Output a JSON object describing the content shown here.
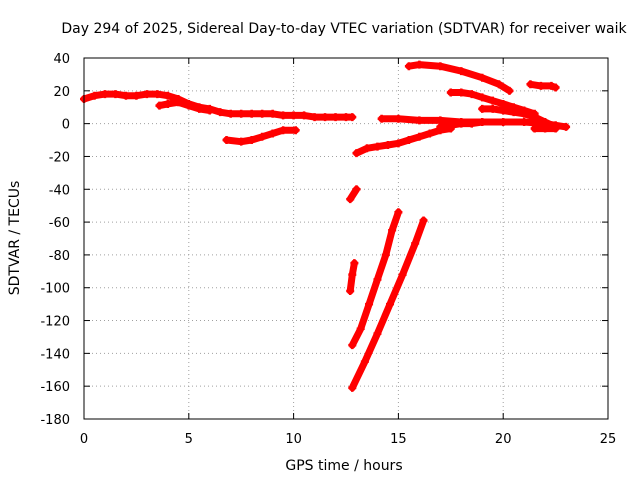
{
  "chart_data": {
    "type": "scatter",
    "title": "Day 294 of 2025, Sidereal Day-to-day VTEC variation (SDTVAR) for receiver waik",
    "xlabel": "GPS time / hours",
    "ylabel": "SDTVAR / TECUs",
    "xlim": [
      0,
      25
    ],
    "ylim": [
      -180,
      40
    ],
    "xticks": [
      0,
      5,
      10,
      15,
      20,
      25
    ],
    "yticks": [
      -180,
      -160,
      -140,
      -120,
      -100,
      -80,
      -60,
      -40,
      -20,
      0,
      20,
      40
    ],
    "grid": true,
    "legend": "none",
    "marker_color": "#ff0000",
    "series": [
      {
        "values": [
          [
            0.0,
            15
          ],
          [
            0.5,
            17
          ],
          [
            1.0,
            18
          ],
          [
            1.5,
            18
          ],
          [
            2.0,
            17
          ],
          [
            2.5,
            17
          ],
          [
            3.0,
            18
          ],
          [
            3.5,
            18
          ],
          [
            4.0,
            17
          ],
          [
            4.5,
            15
          ],
          [
            5.0,
            12
          ],
          [
            5.5,
            10
          ],
          [
            6.0,
            9
          ],
          [
            6.5,
            7
          ],
          [
            7.0,
            6
          ],
          [
            7.5,
            6
          ],
          [
            8.0,
            6
          ],
          [
            8.5,
            6
          ],
          [
            9.0,
            6
          ],
          [
            9.5,
            5
          ],
          [
            10.0,
            5
          ],
          [
            10.5,
            5
          ],
          [
            11.0,
            4
          ],
          [
            11.5,
            4
          ],
          [
            12.0,
            4
          ],
          [
            12.5,
            4
          ],
          [
            12.8,
            4
          ]
        ]
      },
      {
        "values": [
          [
            3.6,
            11
          ],
          [
            4.0,
            12
          ],
          [
            4.5,
            13
          ],
          [
            5.0,
            11
          ],
          [
            5.5,
            9
          ],
          [
            6.0,
            8
          ]
        ]
      },
      {
        "values": [
          [
            6.8,
            -10
          ],
          [
            7.5,
            -11
          ],
          [
            8.0,
            -10
          ],
          [
            8.5,
            -8
          ],
          [
            9.0,
            -6
          ],
          [
            9.5,
            -4
          ],
          [
            10.1,
            -4
          ]
        ]
      },
      {
        "values": [
          [
            13.0,
            -18
          ],
          [
            13.5,
            -15
          ],
          [
            14.0,
            -14
          ],
          [
            14.5,
            -13
          ],
          [
            15.0,
            -12
          ],
          [
            15.5,
            -10
          ],
          [
            16.0,
            -8
          ],
          [
            16.5,
            -6
          ],
          [
            17.0,
            -4
          ],
          [
            17.5,
            -3
          ]
        ]
      },
      {
        "values": [
          [
            14.2,
            3
          ],
          [
            15.0,
            3
          ],
          [
            16.0,
            2
          ],
          [
            17.0,
            2
          ],
          [
            18.0,
            1
          ],
          [
            19.0,
            1
          ],
          [
            20.0,
            1
          ],
          [
            21.0,
            1
          ],
          [
            22.0,
            0
          ],
          [
            22.5,
            -1
          ],
          [
            23.0,
            -2
          ]
        ]
      },
      {
        "values": [
          [
            15.5,
            35
          ],
          [
            16.0,
            36
          ],
          [
            17.0,
            35
          ],
          [
            18.0,
            32
          ],
          [
            19.0,
            28
          ],
          [
            19.8,
            24
          ],
          [
            20.3,
            20
          ]
        ]
      },
      {
        "values": [
          [
            17.5,
            19
          ],
          [
            18.0,
            19
          ],
          [
            18.5,
            18
          ],
          [
            19.0,
            16
          ],
          [
            19.5,
            14
          ],
          [
            20.0,
            12
          ],
          [
            20.5,
            10
          ],
          [
            21.0,
            8
          ],
          [
            21.5,
            6
          ]
        ]
      },
      {
        "values": [
          [
            19.0,
            9
          ],
          [
            19.5,
            9
          ],
          [
            20.0,
            8
          ],
          [
            20.5,
            7
          ],
          [
            21.0,
            6
          ],
          [
            21.5,
            4
          ],
          [
            22.0,
            1
          ],
          [
            22.5,
            -2
          ]
        ]
      },
      {
        "values": [
          [
            17.0,
            -2
          ],
          [
            17.5,
            -1
          ],
          [
            18.0,
            0
          ],
          [
            18.5,
            0
          ],
          [
            19.0,
            1
          ]
        ]
      },
      {
        "values": [
          [
            21.5,
            -3
          ],
          [
            22.0,
            -3
          ],
          [
            22.5,
            -3
          ]
        ]
      },
      {
        "values": [
          [
            21.3,
            24
          ],
          [
            21.8,
            23
          ],
          [
            22.3,
            23
          ],
          [
            22.5,
            22
          ]
        ]
      },
      {
        "values": [
          [
            12.7,
            -46
          ],
          [
            13.0,
            -40
          ]
        ]
      },
      {
        "values": [
          [
            12.7,
            -102
          ],
          [
            12.8,
            -92
          ],
          [
            12.9,
            -85
          ]
        ]
      },
      {
        "values": [
          [
            12.8,
            -135
          ],
          [
            13.2,
            -125
          ],
          [
            13.6,
            -110
          ],
          [
            14.0,
            -95
          ],
          [
            14.4,
            -80
          ],
          [
            14.7,
            -65
          ],
          [
            15.0,
            -54
          ]
        ]
      },
      {
        "values": [
          [
            12.8,
            -161
          ],
          [
            13.4,
            -145
          ],
          [
            14.0,
            -128
          ],
          [
            14.6,
            -110
          ],
          [
            15.2,
            -92
          ],
          [
            15.8,
            -73
          ],
          [
            16.2,
            -59
          ]
        ]
      }
    ]
  }
}
